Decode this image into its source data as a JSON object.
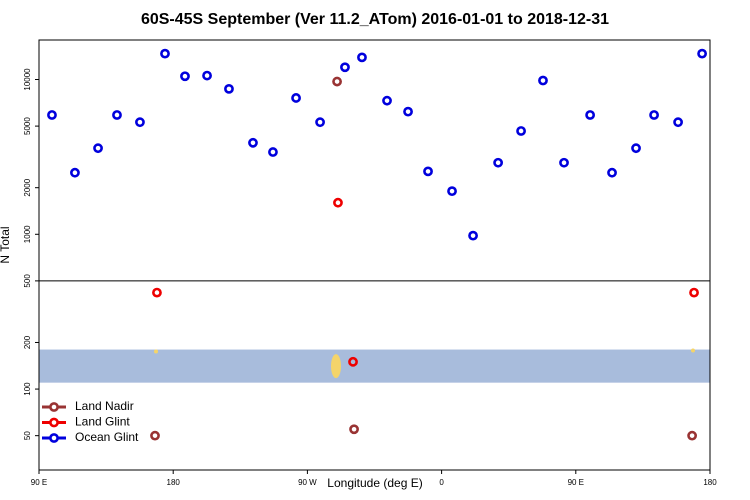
{
  "chart_data": {
    "type": "scatter",
    "title": "60S-45S September (Ver 11.2_ATom)   2016-01-01 to 2018-12-31",
    "xlabel": "Longitude (deg E)",
    "ylabel": "N Total",
    "xlim": [
      90,
      540
    ],
    "xticks": [
      {
        "value": 90,
        "label": "90 E"
      },
      180,
      {
        "value": 270,
        "label": "90 W"
      },
      {
        "value": 360,
        "label": "0"
      },
      {
        "value": 450,
        "label": "90 E"
      },
      {
        "value": 540,
        "label": "180"
      }
    ],
    "ylim": [
      30,
      18000
    ],
    "yticks": [
      50,
      100,
      200,
      500,
      1000,
      2000,
      5000,
      10000
    ],
    "log_y": true,
    "separator": 500,
    "band": {
      "ylim": [
        110,
        180
      ],
      "color": "#a8bcdc"
    },
    "legend": "lower left",
    "series": [
      {
        "name": "Land Nadir",
        "color": "#993333",
        "x": [
          289.9,
          167.8,
          301.3,
          528.0
        ],
        "values": [
          9700,
          50,
          55,
          50
        ]
      },
      {
        "name": "Land Glint",
        "color": "#ee0000",
        "x": [
          169.1,
          290.5,
          300.6,
          529.3
        ],
        "values": [
          420,
          1600,
          150,
          420
        ]
      },
      {
        "name": "Ocean Glint",
        "color": "#0000dd",
        "x": [
          98.7,
          114.1,
          129.6,
          142.3,
          157.7,
          174.5,
          187.9,
          202.7,
          217.4,
          233.5,
          246.9,
          262.4,
          278.5,
          295.2,
          306.6,
          323.4,
          337.5,
          350.9,
          367.0,
          381.1,
          397.9,
          413.3,
          428.0,
          442.1,
          459.6,
          474.3,
          490.4,
          502.5,
          518.6,
          534.7
        ],
        "values": [
          5900,
          2500,
          3600,
          5900,
          5300,
          14700,
          10500,
          10600,
          8700,
          3900,
          3400,
          7600,
          5300,
          12000,
          13900,
          7300,
          6200,
          2550,
          1900,
          980,
          2900,
          4650,
          9850,
          2900,
          5900,
          2500,
          3600,
          5900,
          5300,
          14700
        ]
      }
    ]
  }
}
